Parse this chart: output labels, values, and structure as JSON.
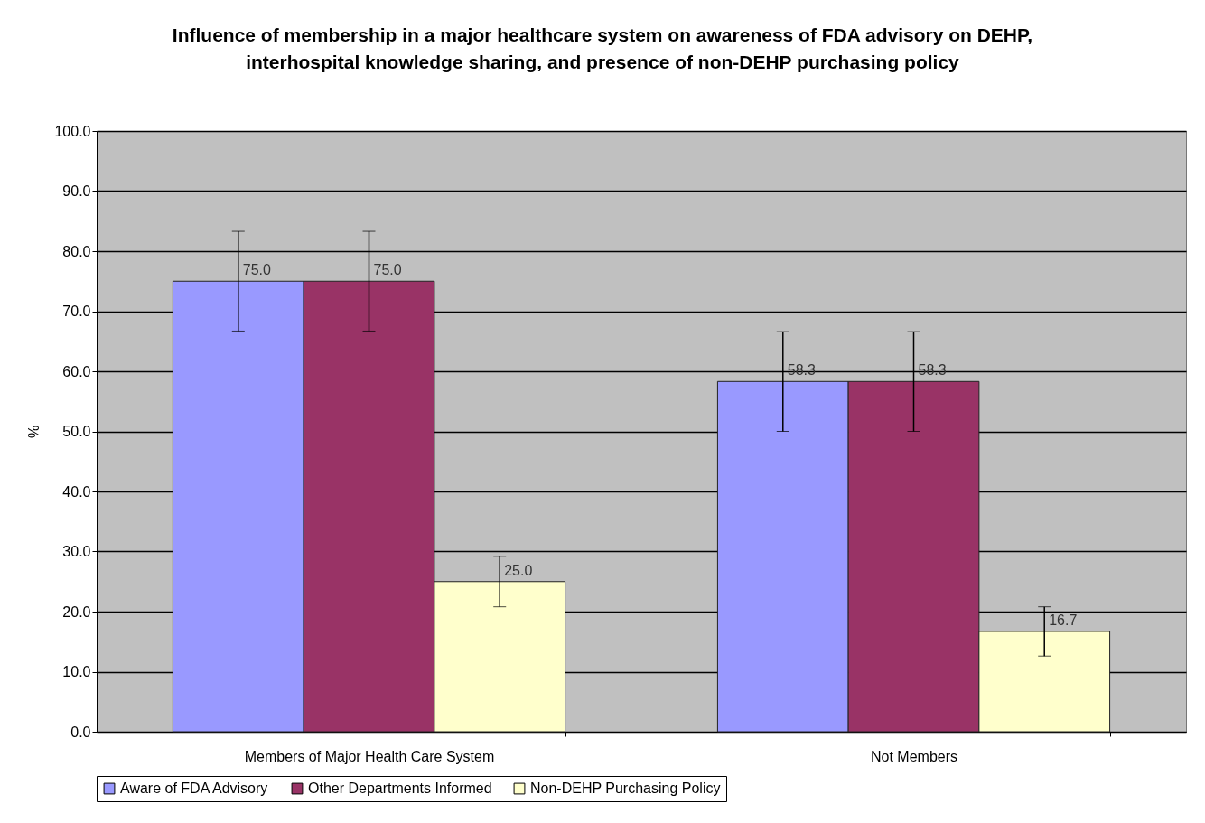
{
  "chart_data": {
    "type": "bar",
    "title": "Influence of membership in a major healthcare system on awareness of FDA advisory on DEHP, interhospital knowledge sharing, and presence of non-DEHP purchasing policy",
    "ylabel": "%",
    "categories": [
      "Members of Major Health Care System",
      "Not Members"
    ],
    "series": [
      {
        "name": "Aware of FDA Advisory",
        "color": "#9999ff",
        "values": [
          75.0,
          58.3
        ],
        "errors": [
          8.3,
          8.3
        ],
        "value_labels": [
          "75.0",
          "58.3"
        ]
      },
      {
        "name": "Other Departments Informed",
        "color": "#993366",
        "values": [
          75.0,
          58.3
        ],
        "errors": [
          8.3,
          8.3
        ],
        "value_labels": [
          "75.0",
          "58.3"
        ]
      },
      {
        "name": "Non-DEHP Purchasing Policy",
        "color": "#ffffcc",
        "values": [
          25.0,
          16.7
        ],
        "errors": [
          4.2,
          4.1
        ],
        "value_labels": [
          "25.0",
          "16.7"
        ]
      }
    ],
    "ylim": [
      0,
      100
    ],
    "yticks": [
      {
        "value": 0,
        "label": "0.0"
      },
      {
        "value": 10,
        "label": "10.0"
      },
      {
        "value": 20,
        "label": "20.0"
      },
      {
        "value": 30,
        "label": "30.0"
      },
      {
        "value": 40,
        "label": "40.0"
      },
      {
        "value": 50,
        "label": "50.0"
      },
      {
        "value": 60,
        "label": "60.0"
      },
      {
        "value": 70,
        "label": "70.0"
      },
      {
        "value": 80,
        "label": "80.0"
      },
      {
        "value": 90,
        "label": "90.0"
      },
      {
        "value": 100,
        "label": "100.0"
      }
    ],
    "grid": "y",
    "legend": "bottom"
  }
}
